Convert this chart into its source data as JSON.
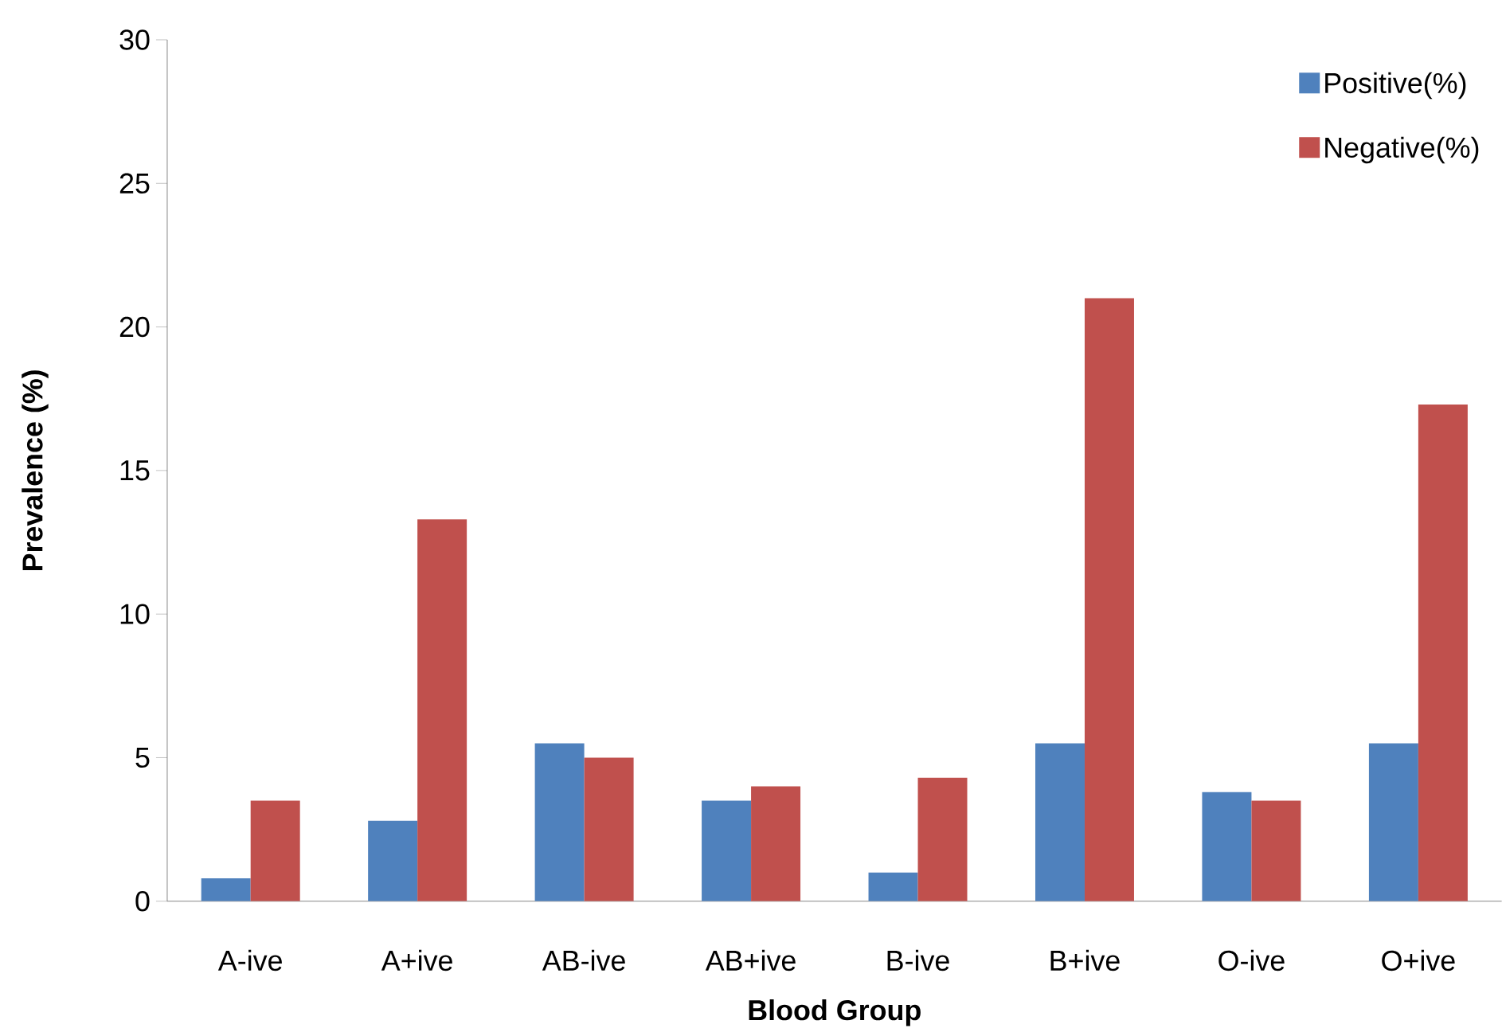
{
  "chart_data": {
    "type": "bar",
    "xlabel": "Blood Group",
    "ylabel": "Prevalence (%)",
    "categories": [
      "A-ive",
      "A+ive",
      "AB-ive",
      "AB+ive",
      "B-ive",
      "B+ive",
      "O-ive",
      "O+ive"
    ],
    "series": [
      {
        "name": "Positive(%)",
        "color": "#4f81bd",
        "values": [
          0.8,
          2.8,
          5.5,
          3.5,
          1.0,
          5.5,
          3.8,
          5.5
        ]
      },
      {
        "name": "Negative(%)",
        "color": "#c0504d",
        "values": [
          3.5,
          13.3,
          5.0,
          4.0,
          4.3,
          21.0,
          3.5,
          17.3
        ]
      }
    ],
    "ylim": [
      0,
      30
    ],
    "yticks": [
      0,
      5,
      10,
      15,
      20,
      25,
      30
    ],
    "legend": "top right"
  }
}
